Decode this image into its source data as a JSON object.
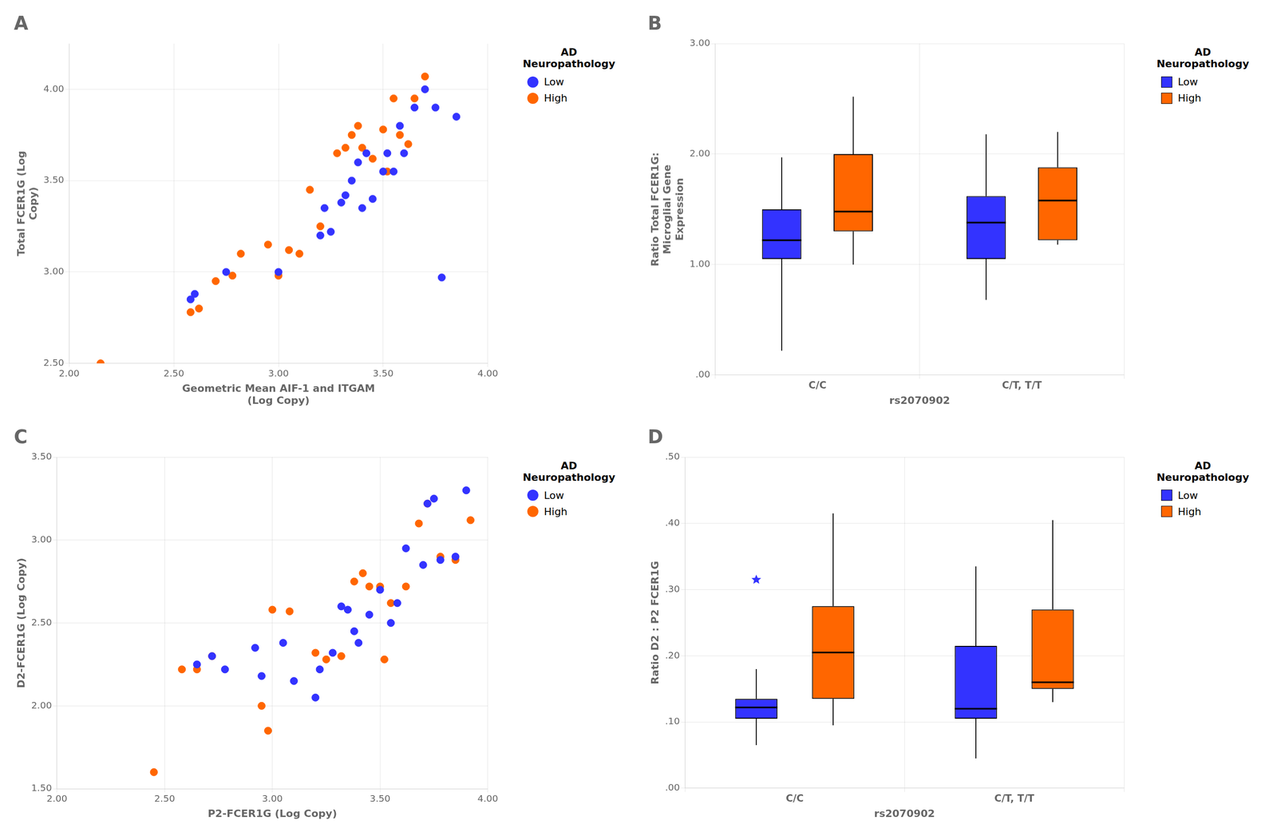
{
  "chart_data": [
    {
      "type": "scatter",
      "title": "A",
      "x_label": "Geometric Mean AIF-1 and ITGAM\n(Log Copy)",
      "y_label": "Total FCER1G (Log\nCopy)",
      "xlim": [
        2.0,
        4.0
      ],
      "ylim": [
        2.5,
        4.25
      ],
      "xticks": [
        {
          "value": 2.0,
          "label": "2.00"
        },
        {
          "value": 2.5,
          "label": "2.50"
        },
        {
          "value": 3.0,
          "label": "3.00"
        },
        {
          "value": 3.5,
          "label": "3.50"
        },
        {
          "value": 4.0,
          "label": "4.00"
        }
      ],
      "yticks": [
        {
          "value": 2.5,
          "label": "2.50"
        },
        {
          "value": 3.0,
          "label": "3.00"
        },
        {
          "value": 3.5,
          "label": "3.50"
        },
        {
          "value": 4.0,
          "label": "4.00"
        }
      ],
      "grid": true,
      "legend_title": "AD\nNeuropathology",
      "series": [
        {
          "name": "Low",
          "color": "#3333FF",
          "x": [
            2.58,
            2.6,
            2.75,
            3.0,
            3.2,
            3.22,
            3.25,
            3.3,
            3.32,
            3.35,
            3.38,
            3.4,
            3.42,
            3.45,
            3.5,
            3.52,
            3.55,
            3.58,
            3.6,
            3.65,
            3.7,
            3.75,
            3.78,
            3.85
          ],
          "values": [
            2.85,
            2.88,
            3.0,
            3.0,
            3.2,
            3.35,
            3.22,
            3.38,
            3.42,
            3.5,
            3.6,
            3.35,
            3.65,
            3.4,
            3.55,
            3.65,
            3.55,
            3.8,
            3.65,
            3.9,
            4.0,
            3.9,
            2.97,
            3.85
          ]
        },
        {
          "name": "High",
          "color": "#FF6600",
          "x": [
            2.15,
            2.58,
            2.62,
            2.7,
            2.78,
            2.82,
            2.95,
            3.0,
            3.05,
            3.1,
            3.15,
            3.2,
            3.28,
            3.32,
            3.35,
            3.38,
            3.4,
            3.45,
            3.5,
            3.52,
            3.55,
            3.58,
            3.62,
            3.65,
            3.7
          ],
          "values": [
            2.5,
            2.78,
            2.8,
            2.95,
            2.98,
            3.1,
            3.15,
            2.98,
            3.12,
            3.1,
            3.45,
            3.25,
            3.65,
            3.68,
            3.75,
            3.8,
            3.68,
            3.62,
            3.78,
            3.55,
            3.95,
            3.75,
            3.7,
            3.95,
            4.07
          ]
        }
      ]
    },
    {
      "type": "box",
      "title": "B",
      "x_label": "rs2070902",
      "y_label": "Ratio Total FCER1G:\nMicroglial Gene\nExpression",
      "categories": [
        "C/C",
        "C/T, T/T"
      ],
      "ylim": [
        0.0,
        3.0
      ],
      "yticks": [
        {
          "value": 0.0,
          "label": ".00"
        },
        {
          "value": 1.0,
          "label": "1.00"
        },
        {
          "value": 2.0,
          "label": "2.00"
        },
        {
          "value": 3.0,
          "label": "3.00"
        }
      ],
      "grid": true,
      "legend_title": "AD\nNeuropathology",
      "series": [
        {
          "name": "Low",
          "color": "#3333FF",
          "q1": [
            1.05,
            1.05
          ],
          "median": [
            1.22,
            1.38
          ],
          "q3": [
            1.5,
            1.62
          ],
          "whisker_low": [
            0.22,
            0.68
          ],
          "whisker_high": [
            1.97,
            2.18
          ]
        },
        {
          "name": "High",
          "color": "#FF6600",
          "q1": [
            1.3,
            1.22
          ],
          "median": [
            1.48,
            1.58
          ],
          "q3": [
            2.0,
            1.88
          ],
          "whisker_low": [
            1.0,
            1.18
          ],
          "whisker_high": [
            2.52,
            2.2
          ]
        }
      ]
    },
    {
      "type": "scatter",
      "title": "C",
      "x_label": "P2-FCER1G (Log Copy)",
      "y_label": "D2-FCER1G (Log Copy)",
      "xlim": [
        2.0,
        4.0
      ],
      "ylim": [
        1.5,
        3.5
      ],
      "xticks": [
        {
          "value": 2.0,
          "label": "2.00"
        },
        {
          "value": 2.5,
          "label": "2.50"
        },
        {
          "value": 3.0,
          "label": "3.00"
        },
        {
          "value": 3.5,
          "label": "3.50"
        },
        {
          "value": 4.0,
          "label": "4.00"
        }
      ],
      "yticks": [
        {
          "value": 1.5,
          "label": "1.50"
        },
        {
          "value": 2.0,
          "label": "2.00"
        },
        {
          "value": 2.5,
          "label": "2.50"
        },
        {
          "value": 3.0,
          "label": "3.00"
        },
        {
          "value": 3.5,
          "label": "3.50"
        }
      ],
      "grid": true,
      "legend_title": "AD\nNeuropathology",
      "series": [
        {
          "name": "Low",
          "color": "#3333FF",
          "x": [
            2.65,
            2.72,
            2.78,
            2.92,
            2.95,
            3.05,
            3.1,
            3.2,
            3.22,
            3.28,
            3.32,
            3.35,
            3.38,
            3.4,
            3.45,
            3.5,
            3.55,
            3.58,
            3.62,
            3.7,
            3.72,
            3.75,
            3.78,
            3.85,
            3.9
          ],
          "values": [
            2.25,
            2.3,
            2.22,
            2.35,
            2.18,
            2.38,
            2.15,
            2.05,
            2.22,
            2.32,
            2.6,
            2.58,
            2.45,
            2.38,
            2.55,
            2.7,
            2.5,
            2.62,
            2.95,
            2.85,
            3.22,
            3.25,
            2.88,
            2.9,
            3.3
          ]
        },
        {
          "name": "High",
          "color": "#FF6600",
          "x": [
            2.45,
            2.58,
            2.65,
            2.72,
            2.95,
            2.98,
            3.0,
            3.08,
            3.2,
            3.25,
            3.32,
            3.38,
            3.42,
            3.45,
            3.5,
            3.52,
            3.55,
            3.62,
            3.68,
            3.72,
            3.78,
            3.85,
            3.92
          ],
          "values": [
            1.6,
            2.22,
            2.22,
            2.3,
            2.0,
            1.85,
            2.58,
            2.57,
            2.32,
            2.28,
            2.3,
            2.75,
            2.8,
            2.72,
            2.72,
            2.28,
            2.62,
            2.72,
            3.1,
            3.22,
            2.9,
            2.88,
            3.12
          ]
        }
      ]
    },
    {
      "type": "box",
      "title": "D",
      "x_label": "rs2070902",
      "y_label": "Ratio D2 : P2 FCER1G",
      "categories": [
        "C/C",
        "C/T, T/T"
      ],
      "ylim": [
        0.0,
        0.5
      ],
      "yticks": [
        {
          "value": 0.0,
          "label": ".00"
        },
        {
          "value": 0.1,
          "label": ".10"
        },
        {
          "value": 0.2,
          "label": ".20"
        },
        {
          "value": 0.3,
          "label": ".30"
        },
        {
          "value": 0.4,
          "label": ".40"
        },
        {
          "value": 0.5,
          "label": ".50"
        }
      ],
      "grid": true,
      "legend_title": "AD\nNeuropathology",
      "series": [
        {
          "name": "Low",
          "color": "#3333FF",
          "marker": "star",
          "q1": [
            0.105,
            0.105
          ],
          "median": [
            0.122,
            0.12
          ],
          "q3": [
            0.135,
            0.215
          ],
          "whisker_low": [
            0.065,
            0.045
          ],
          "whisker_high": [
            0.18,
            0.335
          ],
          "outliers": [
            [
              0.315
            ],
            []
          ]
        },
        {
          "name": "High",
          "color": "#FF6600",
          "q1": [
            0.135,
            0.15
          ],
          "median": [
            0.205,
            0.16
          ],
          "q3": [
            0.275,
            0.27
          ],
          "whisker_low": [
            0.095,
            0.13
          ],
          "whisker_high": [
            0.415,
            0.405
          ]
        }
      ]
    }
  ]
}
